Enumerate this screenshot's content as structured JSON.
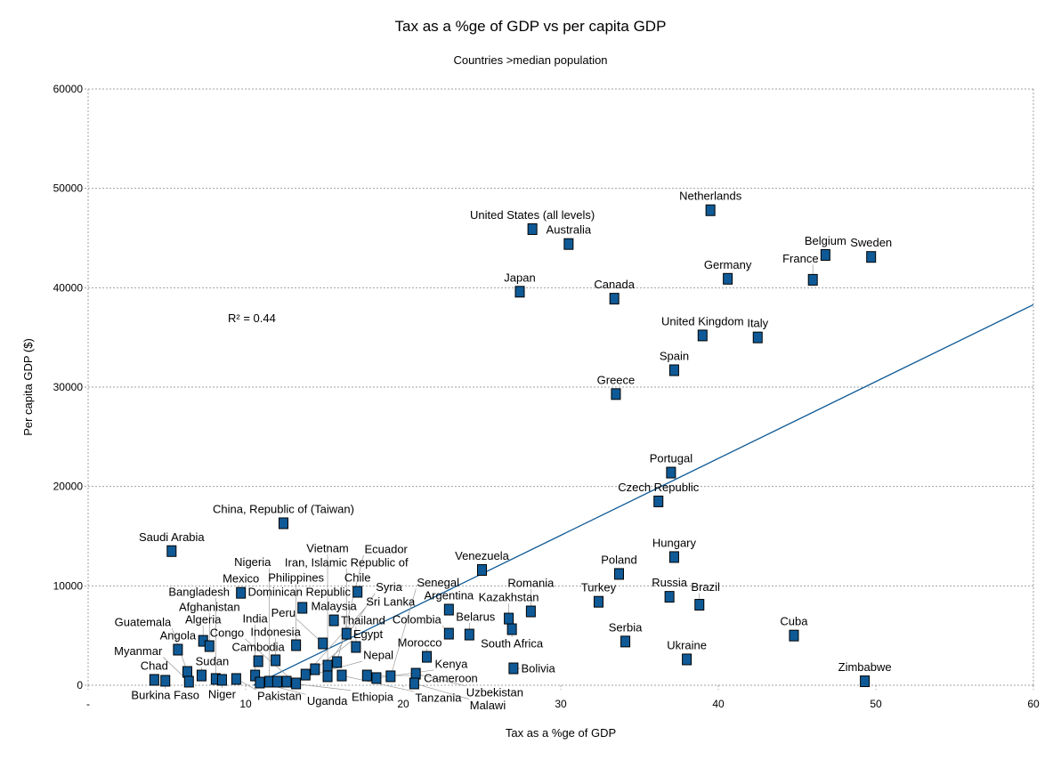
{
  "chart_data": {
    "type": "scatter",
    "title": "Tax as a %ge of GDP vs per capita GDP",
    "subtitle": "Countries >median population",
    "xlabel": "Tax as a %ge of GDP",
    "ylabel": "Per capita GDP ($)",
    "xlim": [
      0,
      60
    ],
    "ylim": [
      0,
      60000
    ],
    "xticks": [
      "-",
      "10",
      "20",
      "30",
      "40",
      "50",
      "60"
    ],
    "yticks": [
      "0",
      "10000",
      "20000",
      "30000",
      "40000",
      "50000",
      "60000"
    ],
    "grid": "horizontal",
    "annotation": "R² = 0.44",
    "trendline": {
      "type": "linear",
      "slope": 773.7,
      "intercept": -8124,
      "color": "#0f5a96"
    },
    "marker_color": "#0f5a96",
    "points": [
      {
        "label": "United States (all levels)",
        "x": 28.2,
        "y": 45900
      },
      {
        "label": "Australia",
        "x": 30.5,
        "y": 44400
      },
      {
        "label": "Netherlands",
        "x": 39.5,
        "y": 47800
      },
      {
        "label": "Belgium",
        "x": 46.8,
        "y": 43300
      },
      {
        "label": "Sweden",
        "x": 49.7,
        "y": 43100
      },
      {
        "label": "Germany",
        "x": 40.6,
        "y": 40900
      },
      {
        "label": "France",
        "x": 46.0,
        "y": 40800
      },
      {
        "label": "Japan",
        "x": 27.4,
        "y": 39600
      },
      {
        "label": "Canada",
        "x": 33.4,
        "y": 38900
      },
      {
        "label": "United Kingdom",
        "x": 39.0,
        "y": 35200
      },
      {
        "label": "Italy",
        "x": 42.5,
        "y": 35000
      },
      {
        "label": "Spain",
        "x": 37.2,
        "y": 31700
      },
      {
        "label": "Greece",
        "x": 33.5,
        "y": 29300
      },
      {
        "label": "Portugal",
        "x": 37.0,
        "y": 21400
      },
      {
        "label": "Czech Republic",
        "x": 36.2,
        "y": 18500
      },
      {
        "label": "China, Republic of (Taiwan)",
        "x": 12.4,
        "y": 16300
      },
      {
        "label": "Saudi Arabia",
        "x": 5.3,
        "y": 13500
      },
      {
        "label": "Hungary",
        "x": 37.2,
        "y": 12900
      },
      {
        "label": "Venezuela",
        "x": 25.0,
        "y": 11600
      },
      {
        "label": "Poland",
        "x": 33.7,
        "y": 11200
      },
      {
        "label": "Mexico",
        "x": 9.7,
        "y": 9300
      },
      {
        "label": "Chile",
        "x": 17.1,
        "y": 9400
      },
      {
        "label": "Turkey",
        "x": 32.4,
        "y": 8400
      },
      {
        "label": "Russia",
        "x": 36.9,
        "y": 8900
      },
      {
        "label": "Brazil",
        "x": 38.8,
        "y": 8100
      },
      {
        "label": "Argentina",
        "x": 22.9,
        "y": 7610
      },
      {
        "label": "Kazakhstan",
        "x": 26.7,
        "y": 6710
      },
      {
        "label": "South Africa",
        "x": 26.9,
        "y": 5640
      },
      {
        "label": "Romania",
        "x": 28.1,
        "y": 7430
      },
      {
        "label": "Colombia",
        "x": 22.9,
        "y": 5190
      },
      {
        "label": "Belarus",
        "x": 24.2,
        "y": 5100
      },
      {
        "label": "Morocco",
        "x": 21.5,
        "y": 2860
      },
      {
        "label": "Cuba",
        "x": 44.8,
        "y": 5000
      },
      {
        "label": "Serbia",
        "x": 34.1,
        "y": 4400
      },
      {
        "label": "Ukraine",
        "x": 38.0,
        "y": 2600
      },
      {
        "label": "Bolivia",
        "x": 27.0,
        "y": 1700
      },
      {
        "label": "Zimbabwe",
        "x": 49.3,
        "y": 400
      },
      {
        "label": "Malaysia",
        "x": 15.6,
        "y": 6530
      },
      {
        "label": "Iran, Islamic Republic of",
        "x": 16.4,
        "y": 5190
      },
      {
        "label": "Thailand",
        "x": 17.0,
        "y": 3850
      },
      {
        "label": "Dominican Republic",
        "x": 13.6,
        "y": 7790
      },
      {
        "label": "Angola",
        "x": 5.7,
        "y": 3580
      },
      {
        "label": "Algeria",
        "x": 7.3,
        "y": 4470
      },
      {
        "label": "Afghanistan",
        "x": 7.7,
        "y": 3940
      },
      {
        "label": "Cambodia",
        "x": 10.8,
        "y": 2420
      },
      {
        "label": "Indonesia",
        "x": 11.9,
        "y": 2510
      },
      {
        "label": "Philippines",
        "x": 13.2,
        "y": 4030
      },
      {
        "label": "Peru",
        "x": 14.9,
        "y": 4210
      },
      {
        "label": "Chad",
        "x": 4.2,
        "y": 540
      },
      {
        "label": "Burkina Faso",
        "x": 4.9,
        "y": 450
      },
      {
        "label": "Guatemala",
        "x": 6.3,
        "y": 1340
      },
      {
        "label": "Myanmar",
        "x": 6.4,
        "y": 360
      },
      {
        "label": "Sudan",
        "x": 7.2,
        "y": 980
      },
      {
        "label": "Bangladesh",
        "x": 8.1,
        "y": 630
      },
      {
        "label": "Niger",
        "x": 8.5,
        "y": 540
      },
      {
        "label": "Pakistan",
        "x": 9.4,
        "y": 630
      },
      {
        "label": "India",
        "x": 10.6,
        "y": 980
      },
      {
        "label": "Uganda",
        "x": 10.9,
        "y": 270
      },
      {
        "label": "Nigeria",
        "x": 11.5,
        "y": 360
      },
      {
        "label": "Ethiopia",
        "x": 12.0,
        "y": 360
      },
      {
        "label": "Nepal",
        "x": 12.6,
        "y": 360
      },
      {
        "label": "Congo",
        "x": 13.2,
        "y": 180
      },
      {
        "label": "Sri Lanka",
        "x": 13.8,
        "y": 1070
      },
      {
        "label": "Egypt",
        "x": 14.4,
        "y": 1610
      },
      {
        "label": "Syria",
        "x": 15.2,
        "y": 1970
      },
      {
        "label": "Vietnam",
        "x": 15.2,
        "y": 900
      },
      {
        "label": "Ecuador",
        "x": 15.8,
        "y": 2330
      },
      {
        "label": "Tanzania",
        "x": 16.1,
        "y": 980
      },
      {
        "label": "Cameroon",
        "x": 17.7,
        "y": 980
      },
      {
        "label": "Kenya",
        "x": 18.3,
        "y": 720
      },
      {
        "label": "Senegal",
        "x": 19.2,
        "y": 900
      },
      {
        "label": "Uzbekistan",
        "x": 20.8,
        "y": 1160
      },
      {
        "label": "Malawi",
        "x": 20.7,
        "y": 180
      }
    ]
  }
}
